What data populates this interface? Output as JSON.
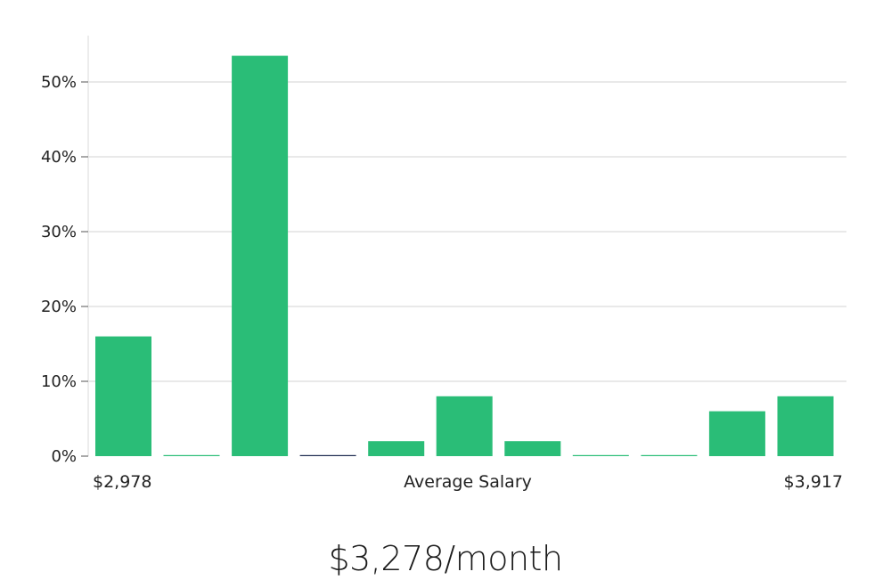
{
  "chart_data": {
    "type": "bar",
    "title": "",
    "xlabel": "Average Salary",
    "ylabel": "",
    "x_min_label": "$2,978",
    "x_max_label": "$3,917",
    "y_ticks": [
      "0%",
      "10%",
      "20%",
      "30%",
      "40%",
      "50%"
    ],
    "ylim": [
      0,
      56
    ],
    "grid": true,
    "values": [
      16,
      0,
      53.5,
      0,
      2,
      8,
      2,
      0,
      0,
      6,
      8
    ],
    "bar_colors": [
      "#2abd77",
      "#2abd77",
      "#2abd77",
      "#1b2a4e",
      "#2abd77",
      "#2abd77",
      "#2abd77",
      "#2abd77",
      "#2abd77",
      "#2abd77",
      "#2abd77"
    ]
  },
  "summary": {
    "salary_text": "$3,278/month"
  },
  "colors": {
    "bar": "#2abd77",
    "highlight_bar": "#1b2a4e",
    "grid": "#e2e2e2",
    "axis": "#d8d8d8"
  }
}
